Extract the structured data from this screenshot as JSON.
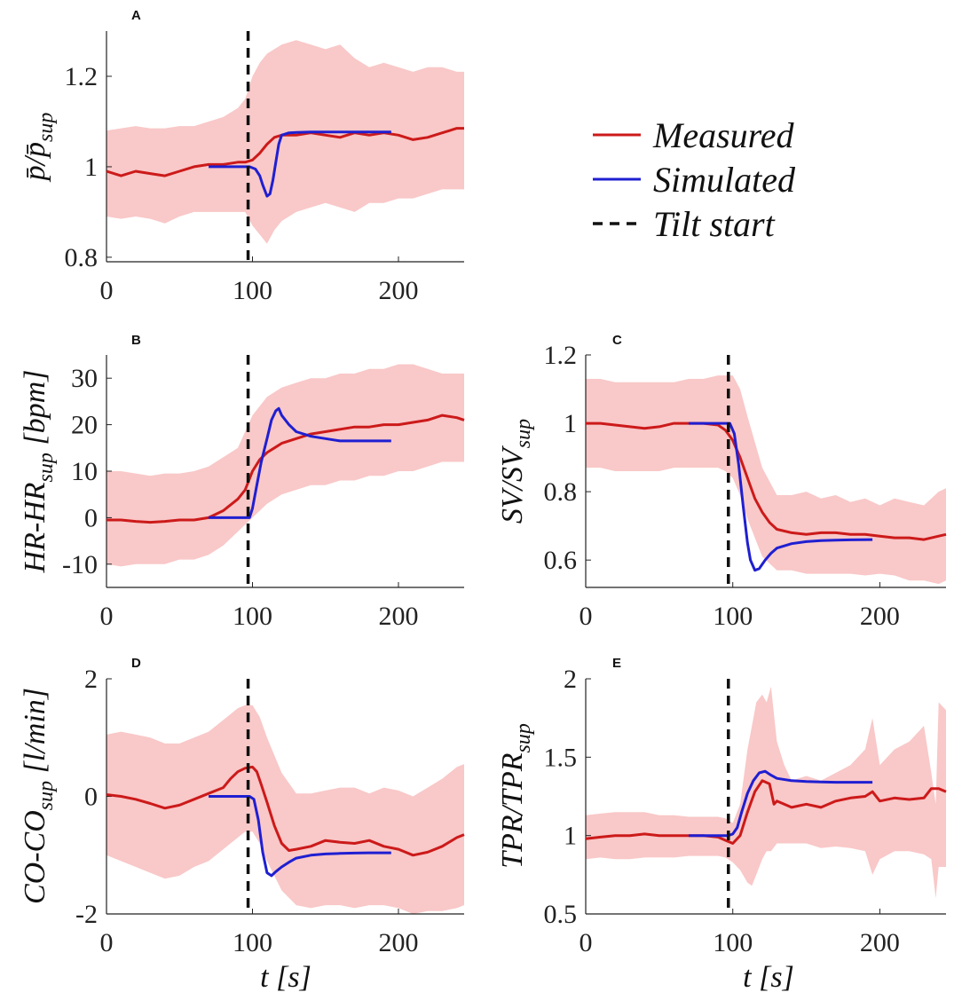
{
  "colors": {
    "measured": "#cc1a1a",
    "simulated": "#1f1fd1",
    "band": "#f9c8c8",
    "tilt": "#111111"
  },
  "legend": {
    "measured": "Measured",
    "simulated": "Simulated",
    "tilt": "Tilt start"
  },
  "chart_data": [
    {
      "panel": "A",
      "type": "line",
      "ylabel": "p̄/p̄sup",
      "xlabel": "",
      "xlim": [
        0,
        245
      ],
      "ylim": [
        0.79,
        1.3
      ],
      "xticks": [
        0,
        100,
        200
      ],
      "yticks": [
        0.8,
        1,
        1.2
      ],
      "ytick_labels": [
        "0.8",
        "1",
        "1.2"
      ],
      "tilt_start": 97,
      "series": [
        {
          "name": "Measured",
          "x": [
            0,
            10,
            20,
            30,
            40,
            50,
            60,
            70,
            80,
            90,
            95,
            100,
            105,
            110,
            115,
            120,
            125,
            130,
            140,
            150,
            160,
            170,
            180,
            190,
            200,
            210,
            220,
            230,
            240,
            245
          ],
          "y": [
            0.99,
            0.98,
            0.99,
            0.985,
            0.98,
            0.99,
            1.0,
            1.005,
            1.005,
            1.01,
            1.01,
            1.015,
            1.03,
            1.05,
            1.065,
            1.07,
            1.07,
            1.07,
            1.075,
            1.07,
            1.065,
            1.075,
            1.07,
            1.075,
            1.07,
            1.06,
            1.065,
            1.075,
            1.085,
            1.085
          ]
        },
        {
          "name": "Simulated",
          "x": [
            70,
            80,
            90,
            98,
            102,
            105,
            107,
            110,
            112,
            114,
            116,
            118,
            120,
            125,
            130,
            140,
            150,
            170,
            195
          ],
          "y": [
            1.0,
            1.0,
            1.0,
            1.0,
            0.995,
            0.98,
            0.96,
            0.935,
            0.94,
            0.97,
            1.01,
            1.05,
            1.07,
            1.075,
            1.076,
            1.077,
            1.077,
            1.077,
            1.077
          ]
        }
      ],
      "band": {
        "x": [
          0,
          10,
          20,
          30,
          40,
          50,
          60,
          70,
          80,
          90,
          95,
          100,
          105,
          110,
          115,
          120,
          130,
          140,
          150,
          160,
          170,
          180,
          190,
          200,
          210,
          220,
          230,
          240,
          245
        ],
        "upper": [
          1.08,
          1.085,
          1.09,
          1.085,
          1.085,
          1.09,
          1.09,
          1.1,
          1.11,
          1.13,
          1.15,
          1.2,
          1.23,
          1.25,
          1.26,
          1.27,
          1.28,
          1.27,
          1.26,
          1.27,
          1.24,
          1.22,
          1.23,
          1.22,
          1.21,
          1.22,
          1.22,
          1.21,
          1.21
        ],
        "lower": [
          0.89,
          0.885,
          0.89,
          0.885,
          0.875,
          0.89,
          0.9,
          0.9,
          0.9,
          0.9,
          0.9,
          0.87,
          0.85,
          0.83,
          0.86,
          0.88,
          0.9,
          0.91,
          0.92,
          0.91,
          0.9,
          0.92,
          0.92,
          0.93,
          0.93,
          0.94,
          0.95,
          0.95,
          0.95
        ]
      }
    },
    {
      "panel": "B",
      "type": "line",
      "ylabel": "HR-HRsup [bpm]",
      "xlabel": "",
      "xlim": [
        0,
        245
      ],
      "ylim": [
        -15,
        35
      ],
      "xticks": [
        0,
        100,
        200
      ],
      "yticks": [
        -10,
        0,
        10,
        20,
        30
      ],
      "ytick_labels": [
        "-10",
        "0",
        "10",
        "20",
        "30"
      ],
      "tilt_start": 97,
      "series": [
        {
          "name": "Measured",
          "x": [
            0,
            10,
            20,
            30,
            40,
            50,
            60,
            70,
            80,
            90,
            95,
            100,
            105,
            110,
            115,
            120,
            130,
            140,
            150,
            160,
            170,
            180,
            190,
            200,
            210,
            220,
            230,
            240,
            245
          ],
          "y": [
            -0.5,
            -0.5,
            -0.8,
            -1.0,
            -0.8,
            -0.5,
            -0.5,
            0,
            1.5,
            4,
            6,
            10,
            12.5,
            14,
            15,
            16,
            17,
            18,
            18.5,
            19,
            19.5,
            19.5,
            20,
            20,
            20.5,
            21,
            22,
            21.5,
            21
          ]
        },
        {
          "name": "Simulated",
          "x": [
            70,
            80,
            90,
            95,
            98,
            100,
            103,
            106,
            110,
            113,
            116,
            118,
            120,
            125,
            130,
            140,
            150,
            160,
            170,
            180,
            195
          ],
          "y": [
            0,
            0,
            0,
            0,
            0,
            2,
            7,
            12,
            17,
            21,
            23,
            23.5,
            22,
            20,
            18.5,
            17.5,
            17,
            16.5,
            16.5,
            16.5,
            16.5
          ]
        }
      ],
      "band": {
        "x": [
          0,
          10,
          20,
          30,
          40,
          50,
          60,
          70,
          80,
          90,
          100,
          110,
          120,
          130,
          140,
          150,
          160,
          170,
          180,
          190,
          200,
          210,
          220,
          230,
          240,
          245
        ],
        "upper": [
          10,
          10,
          9.5,
          9,
          9.5,
          9.5,
          10,
          11,
          13,
          15,
          22,
          26,
          28,
          29,
          30,
          30,
          31,
          31,
          32,
          32,
          33,
          33,
          32,
          31,
          31,
          31
        ],
        "lower": [
          -10,
          -10.5,
          -10,
          -10,
          -10,
          -9,
          -9,
          -8,
          -6,
          -3,
          0,
          3,
          5,
          6,
          7,
          7,
          8,
          8,
          9,
          9,
          10,
          10,
          11,
          12,
          12,
          12
        ]
      }
    },
    {
      "panel": "C",
      "type": "line",
      "ylabel": "SV/SVsup",
      "xlabel": "",
      "xlim": [
        0,
        245
      ],
      "ylim": [
        0.52,
        1.2
      ],
      "xticks": [
        0,
        100,
        200
      ],
      "yticks": [
        0.6,
        0.8,
        1,
        1.2
      ],
      "ytick_labels": [
        "0.6",
        "0.8",
        "1",
        "1.2"
      ],
      "tilt_start": 97,
      "series": [
        {
          "name": "Measured",
          "x": [
            0,
            10,
            20,
            30,
            40,
            50,
            60,
            70,
            80,
            90,
            95,
            100,
            105,
            110,
            115,
            120,
            125,
            130,
            140,
            150,
            160,
            170,
            180,
            190,
            200,
            210,
            220,
            230,
            240,
            245
          ],
          "y": [
            1.0,
            1.0,
            0.995,
            0.99,
            0.985,
            0.99,
            1.0,
            1.0,
            1.0,
            0.995,
            0.98,
            0.95,
            0.9,
            0.84,
            0.78,
            0.74,
            0.71,
            0.69,
            0.68,
            0.675,
            0.68,
            0.68,
            0.675,
            0.675,
            0.67,
            0.665,
            0.665,
            0.66,
            0.67,
            0.675
          ]
        },
        {
          "name": "Simulated",
          "x": [
            70,
            80,
            90,
            95,
            98,
            101,
            104,
            107,
            110,
            112,
            115,
            118,
            122,
            126,
            130,
            140,
            150,
            160,
            170,
            180,
            195
          ],
          "y": [
            1.0,
            1.0,
            1.0,
            1.0,
            1.0,
            0.97,
            0.88,
            0.76,
            0.65,
            0.6,
            0.57,
            0.575,
            0.6,
            0.62,
            0.635,
            0.648,
            0.654,
            0.657,
            0.658,
            0.659,
            0.66
          ]
        }
      ],
      "band": {
        "x": [
          0,
          10,
          20,
          30,
          40,
          50,
          60,
          70,
          80,
          90,
          95,
          100,
          105,
          110,
          120,
          130,
          140,
          150,
          160,
          170,
          180,
          190,
          200,
          210,
          220,
          230,
          240,
          245
        ],
        "upper": [
          1.13,
          1.13,
          1.12,
          1.12,
          1.12,
          1.12,
          1.12,
          1.13,
          1.13,
          1.14,
          1.14,
          1.14,
          1.1,
          1.02,
          0.87,
          0.79,
          0.79,
          0.8,
          0.78,
          0.79,
          0.77,
          0.78,
          0.76,
          0.78,
          0.77,
          0.76,
          0.8,
          0.81
        ],
        "lower": [
          0.87,
          0.87,
          0.86,
          0.86,
          0.86,
          0.86,
          0.87,
          0.87,
          0.87,
          0.87,
          0.86,
          0.84,
          0.79,
          0.72,
          0.61,
          0.57,
          0.57,
          0.56,
          0.56,
          0.56,
          0.56,
          0.555,
          0.56,
          0.555,
          0.54,
          0.54,
          0.53,
          0.54
        ]
      }
    },
    {
      "panel": "D",
      "type": "line",
      "ylabel": "CO-COsup [l/min]",
      "xlabel": "t [s]",
      "xlim": [
        0,
        245
      ],
      "ylim": [
        -2,
        2
      ],
      "xticks": [
        0,
        100,
        200
      ],
      "yticks": [
        -2,
        0,
        2
      ],
      "ytick_labels": [
        "-2",
        "0",
        "2"
      ],
      "tilt_start": 97,
      "series": [
        {
          "name": "Measured",
          "x": [
            0,
            10,
            20,
            30,
            40,
            50,
            60,
            70,
            80,
            85,
            90,
            95,
            100,
            103,
            106,
            110,
            115,
            120,
            125,
            130,
            140,
            150,
            160,
            170,
            180,
            190,
            200,
            210,
            220,
            230,
            240,
            245
          ],
          "y": [
            0.03,
            0,
            -0.05,
            -0.12,
            -0.2,
            -0.15,
            -0.05,
            0.05,
            0.15,
            0.3,
            0.42,
            0.48,
            0.5,
            0.42,
            0.2,
            -0.1,
            -0.5,
            -0.8,
            -0.92,
            -0.9,
            -0.85,
            -0.75,
            -0.78,
            -0.8,
            -0.75,
            -0.85,
            -0.9,
            -1.0,
            -0.95,
            -0.85,
            -0.7,
            -0.65
          ]
        },
        {
          "name": "Simulated",
          "x": [
            70,
            80,
            90,
            98,
            101,
            104,
            107,
            110,
            113,
            116,
            120,
            125,
            130,
            140,
            150,
            160,
            170,
            180,
            195
          ],
          "y": [
            0,
            0,
            0,
            0,
            -0.05,
            -0.4,
            -0.95,
            -1.3,
            -1.35,
            -1.28,
            -1.2,
            -1.12,
            -1.05,
            -1.0,
            -0.98,
            -0.97,
            -0.965,
            -0.96,
            -0.96
          ]
        }
      ],
      "band": {
        "x": [
          0,
          10,
          20,
          30,
          40,
          50,
          60,
          70,
          80,
          90,
          95,
          100,
          105,
          110,
          120,
          130,
          140,
          150,
          160,
          170,
          180,
          190,
          200,
          210,
          220,
          230,
          240,
          245
        ],
        "upper": [
          1.05,
          1.1,
          1.05,
          1.0,
          0.9,
          0.9,
          1.0,
          1.1,
          1.3,
          1.5,
          1.55,
          1.55,
          1.35,
          1.0,
          0.4,
          0.05,
          0.05,
          0.1,
          0.15,
          0.15,
          0.05,
          0.15,
          0.1,
          0.0,
          0.15,
          0.3,
          0.5,
          0.55
        ],
        "lower": [
          -1.0,
          -1.1,
          -1.2,
          -1.3,
          -1.4,
          -1.35,
          -1.2,
          -1.1,
          -0.9,
          -0.7,
          -0.6,
          -0.6,
          -0.8,
          -1.1,
          -1.6,
          -1.85,
          -1.9,
          -1.85,
          -1.85,
          -1.9,
          -1.85,
          -1.85,
          -1.9,
          -2.0,
          -1.95,
          -1.95,
          -1.9,
          -1.85
        ]
      }
    },
    {
      "panel": "E",
      "type": "line",
      "ylabel": "TPR/TPRsup",
      "xlabel": "t [s]",
      "xlim": [
        0,
        245
      ],
      "ylim": [
        0.5,
        2
      ],
      "xticks": [
        0,
        100,
        200
      ],
      "yticks": [
        0.5,
        1,
        1.5,
        2
      ],
      "ytick_labels": [
        "0.5",
        "1",
        "1.5",
        "2"
      ],
      "tilt_start": 97,
      "series": [
        {
          "name": "Measured",
          "x": [
            0,
            10,
            20,
            30,
            40,
            50,
            60,
            70,
            80,
            90,
            95,
            100,
            105,
            110,
            115,
            120,
            125,
            128,
            130,
            140,
            150,
            160,
            170,
            180,
            190,
            195,
            200,
            210,
            220,
            230,
            235,
            240,
            245
          ],
          "y": [
            0.98,
            0.99,
            1.0,
            1.0,
            1.01,
            1.0,
            1.0,
            1.0,
            1.0,
            0.99,
            0.97,
            0.95,
            1.0,
            1.15,
            1.28,
            1.35,
            1.33,
            1.2,
            1.22,
            1.18,
            1.2,
            1.18,
            1.22,
            1.24,
            1.25,
            1.28,
            1.22,
            1.24,
            1.23,
            1.24,
            1.3,
            1.3,
            1.28
          ]
        },
        {
          "name": "Simulated",
          "x": [
            70,
            80,
            90,
            97,
            100,
            103,
            106,
            110,
            114,
            118,
            122,
            126,
            130,
            140,
            150,
            160,
            170,
            180,
            195
          ],
          "y": [
            1.0,
            1.0,
            1.0,
            1.0,
            1.01,
            1.05,
            1.15,
            1.27,
            1.35,
            1.4,
            1.41,
            1.385,
            1.365,
            1.35,
            1.345,
            1.342,
            1.34,
            1.34,
            1.34
          ]
        }
      ],
      "band": {
        "x": [
          0,
          10,
          20,
          30,
          40,
          50,
          60,
          70,
          80,
          90,
          95,
          100,
          105,
          110,
          113,
          116,
          120,
          123,
          126,
          130,
          135,
          140,
          150,
          160,
          170,
          180,
          190,
          195,
          200,
          210,
          220,
          230,
          235,
          238,
          240,
          245
        ],
        "upper": [
          1.13,
          1.14,
          1.15,
          1.15,
          1.15,
          1.13,
          1.13,
          1.12,
          1.12,
          1.12,
          1.11,
          1.08,
          1.2,
          1.55,
          1.7,
          1.85,
          1.9,
          1.85,
          1.95,
          1.6,
          1.45,
          1.35,
          1.38,
          1.35,
          1.4,
          1.45,
          1.55,
          1.75,
          1.45,
          1.55,
          1.6,
          1.7,
          1.4,
          1.2,
          1.85,
          1.8
        ],
        "lower": [
          0.85,
          0.86,
          0.85,
          0.85,
          0.86,
          0.86,
          0.86,
          0.87,
          0.87,
          0.87,
          0.86,
          0.83,
          0.78,
          0.7,
          0.68,
          0.75,
          0.85,
          0.9,
          0.9,
          0.95,
          0.95,
          0.95,
          0.95,
          0.92,
          0.93,
          0.92,
          0.9,
          0.75,
          0.85,
          0.9,
          0.9,
          0.88,
          0.85,
          0.6,
          0.8,
          0.8
        ]
      }
    }
  ]
}
